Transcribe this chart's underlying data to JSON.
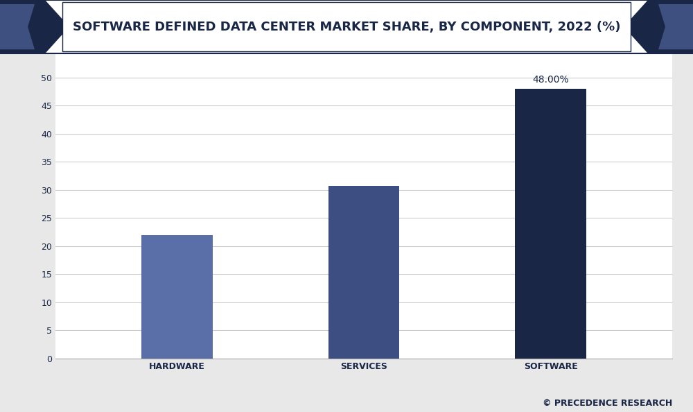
{
  "title": "SOFTWARE DEFINED DATA CENTER MARKET SHARE, BY COMPONENT, 2022 (%)",
  "categories": [
    "HARDWARE",
    "SERVICES",
    "SOFTWARE"
  ],
  "values": [
    22.0,
    30.7,
    48.0
  ],
  "bar_colors": [
    "#5a6fa8",
    "#3d4f82",
    "#1a2645"
  ],
  "annotation_index": 2,
  "annotation_text": "48.00%",
  "ylim": [
    0,
    55
  ],
  "yticks": [
    0,
    5,
    10,
    15,
    20,
    25,
    30,
    35,
    40,
    45,
    50
  ],
  "background_color": "#e8e8e8",
  "plot_bg_color": "#ffffff",
  "title_bg_color": "#ffffff",
  "title_text_color": "#1a2645",
  "title_border_color": "#1a2645",
  "pentagon_color": "#1a2645",
  "pentagon_inner_color": "#3d5080",
  "grid_color": "#cccccc",
  "watermark": "© PRECEDENCE RESEARCH",
  "title_fontsize": 13,
  "label_fontsize": 9,
  "annotation_fontsize": 10,
  "watermark_fontsize": 9,
  "axis_text_color": "#1a2645"
}
